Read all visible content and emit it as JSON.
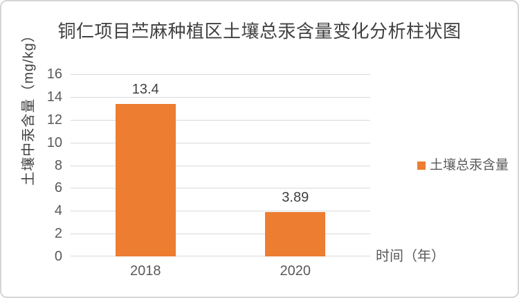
{
  "chart_data": {
    "type": "bar",
    "title": "铜仁项目苎麻种植区土壤总汞含量变化分析柱状图",
    "categories": [
      "2018",
      "2020"
    ],
    "series": [
      {
        "name": "土壤总汞含量",
        "values": [
          13.4,
          3.89
        ],
        "color": "#ED7D31"
      }
    ],
    "value_labels": [
      "13.4",
      "3.89"
    ],
    "xlabel": "时间（年）",
    "ylabel": "土壤中汞含量（mg/kg）",
    "ylim": [
      0,
      16
    ],
    "yticks": [
      0,
      2,
      4,
      6,
      8,
      10,
      12,
      14,
      16
    ],
    "grid": true,
    "legend_position": "right"
  },
  "colors": {
    "bar": "#ED7D31",
    "gridline": "#D9D9D9",
    "axis_text": "#595959",
    "title_text": "#404040",
    "value_text": "#404040",
    "frame_border": "#D5D5D5",
    "background": "#FFFFFF"
  }
}
